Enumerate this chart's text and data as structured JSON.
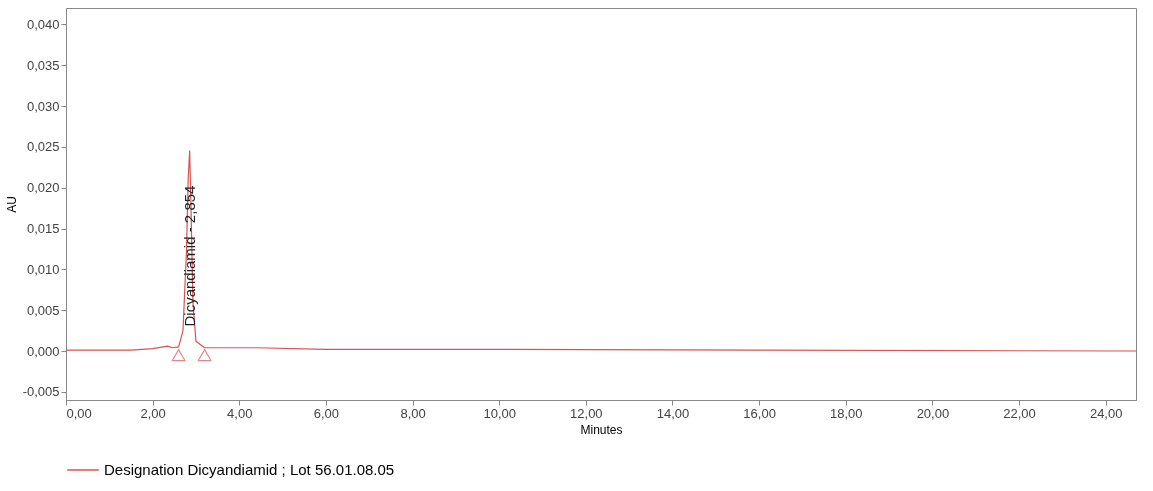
{
  "chart_data": {
    "type": "line",
    "xlabel": "Minutes",
    "ylabel": "AU",
    "xlim": [
      0,
      24.7
    ],
    "ylim": [
      -0.006,
      0.042
    ],
    "xticks": [
      {
        "value": 0,
        "label": "0,00"
      },
      {
        "value": 2,
        "label": "2,00"
      },
      {
        "value": 4,
        "label": "4,00"
      },
      {
        "value": 6,
        "label": "6,00"
      },
      {
        "value": 8,
        "label": "8,00"
      },
      {
        "value": 10,
        "label": "10,00"
      },
      {
        "value": 12,
        "label": "12,00"
      },
      {
        "value": 14,
        "label": "14,00"
      },
      {
        "value": 16,
        "label": "16,00"
      },
      {
        "value": 18,
        "label": "18,00"
      },
      {
        "value": 20,
        "label": "20,00"
      },
      {
        "value": 22,
        "label": "22,00"
      },
      {
        "value": 24,
        "label": "24,00"
      }
    ],
    "yticks": [
      {
        "value": -0.005,
        "label": "-0,005"
      },
      {
        "value": 0,
        "label": "0,000"
      },
      {
        "value": 0.005,
        "label": "0,005"
      },
      {
        "value": 0.01,
        "label": "0,010"
      },
      {
        "value": 0.015,
        "label": "0,015"
      },
      {
        "value": 0.02,
        "label": "0,020"
      },
      {
        "value": 0.025,
        "label": "0,025"
      },
      {
        "value": 0.03,
        "label": "0,030"
      },
      {
        "value": 0.035,
        "label": "0,035"
      },
      {
        "value": 0.04,
        "label": "0,040"
      }
    ],
    "grid": false,
    "legend": "bottom",
    "marker": "none",
    "line_style": "solid",
    "series": [
      {
        "name": "Designation Dicyandiamid ; Lot 56.01.08.05",
        "color": "#d9534f",
        "x": [
          0,
          1.5,
          2.0,
          2.35,
          2.45,
          2.6,
          2.7,
          2.78,
          2.82,
          2.854,
          2.88,
          2.93,
          3.0,
          3.2,
          4.4,
          6,
          10,
          16,
          24.7
        ],
        "values": [
          0.0001,
          0.0001,
          0.0003,
          0.0006,
          0.0004,
          0.0005,
          0.0025,
          0.012,
          0.021,
          0.0245,
          0.019,
          0.006,
          0.0012,
          0.0004,
          0.0004,
          0.0002,
          0.0002,
          0.0001,
          0.0
        ]
      },
      {
        "type": "scatter",
        "marker": "triangle",
        "color": "#d9534f",
        "x": [
          2.6,
          3.2
        ],
        "values": [
          -0.0005,
          -0.0005
        ]
      }
    ],
    "annotations": [
      {
        "text": "Dicyandiamid - 2,854",
        "x": 2.854,
        "y": 0.003
      }
    ]
  }
}
